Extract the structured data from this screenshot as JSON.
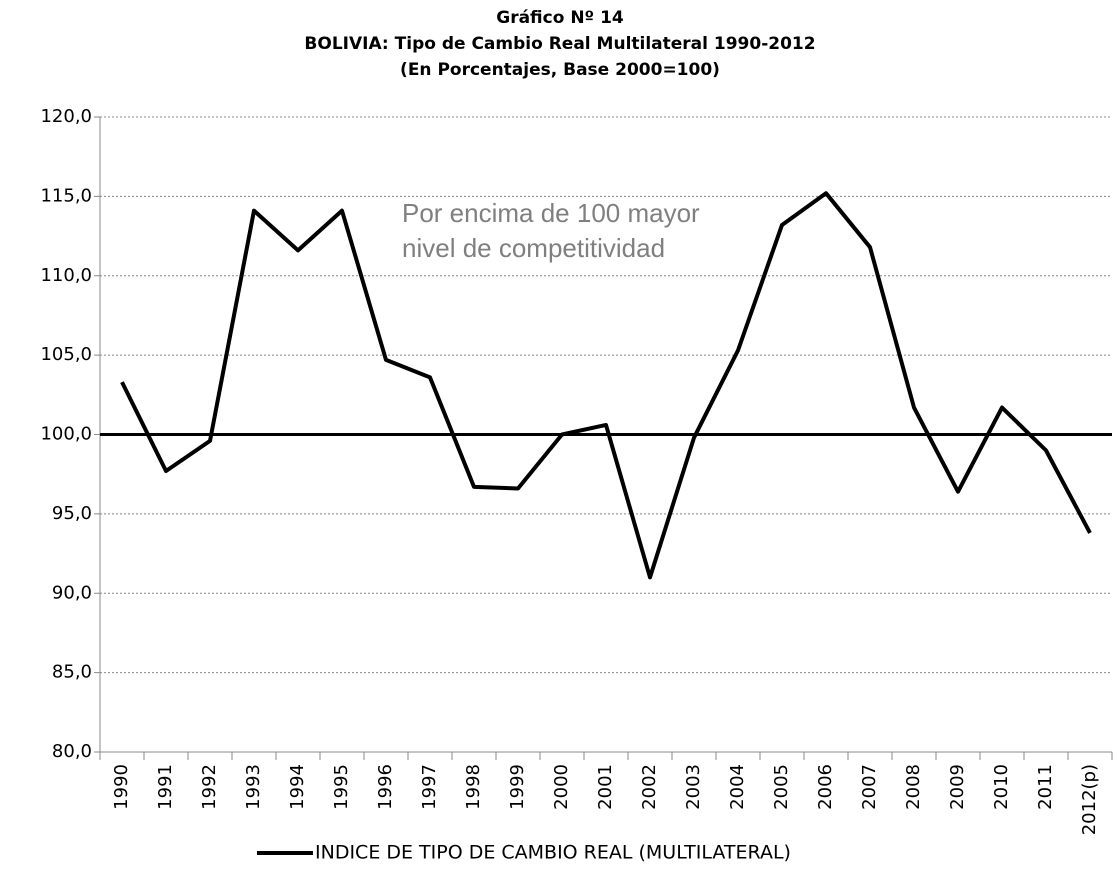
{
  "chart_data": {
    "type": "line",
    "title": [
      "Gráfico Nº  14",
      "BOLIVIA: Tipo de Cambio Real Multilateral 1990-2012",
      "(En Porcentajes, Base 2000=100)"
    ],
    "annotation": [
      "Por encima de 100 mayor",
      "nivel de competitividad"
    ],
    "categories": [
      "1990",
      "1991",
      "1992",
      "1993",
      "1994",
      "1995",
      "1996",
      "1997",
      "1998",
      "1999",
      "2000",
      "2001",
      "2002",
      "2003",
      "2004",
      "2005",
      "2006",
      "2007",
      "2008",
      "2009",
      "2010",
      "2011",
      "2012(p)"
    ],
    "series": [
      {
        "name": "INDICE DE TIPO DE CAMBIO REAL (MULTILATERAL)",
        "color": "#000000",
        "values": [
          103.3,
          97.7,
          99.6,
          114.1,
          111.6,
          114.1,
          104.7,
          103.6,
          96.7,
          96.6,
          100.0,
          100.6,
          91.0,
          99.8,
          105.3,
          113.2,
          115.2,
          111.8,
          101.7,
          96.4,
          101.7,
          99.0,
          93.8
        ]
      }
    ],
    "reference_line": 100,
    "ylim": [
      80,
      120
    ],
    "yticks": [
      {
        "value": 80,
        "label": "80,0"
      },
      {
        "value": 85,
        "label": "85,0"
      },
      {
        "value": 90,
        "label": "90,0"
      },
      {
        "value": 95,
        "label": "95,0"
      },
      {
        "value": 100,
        "label": "100,0"
      },
      {
        "value": 105,
        "label": "105,0"
      },
      {
        "value": 110,
        "label": "110,0"
      },
      {
        "value": 115,
        "label": "115,0"
      },
      {
        "value": 120,
        "label": "120,0"
      }
    ],
    "grid": true,
    "legend": "bottom"
  }
}
